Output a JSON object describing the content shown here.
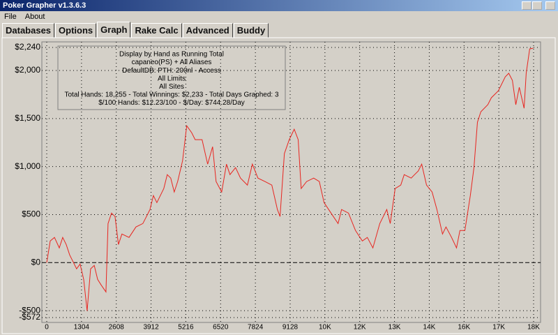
{
  "window": {
    "title": "Poker Grapher v1.3.6.3"
  },
  "menu": [
    "File",
    "About"
  ],
  "tabs": [
    "Databases",
    "Options",
    "Graph",
    "Rake Calc",
    "Advanced",
    "Buddy"
  ],
  "chart_data": {
    "type": "line",
    "annotations": [
      "Display by Hand as Running Total",
      "capaneo(PS) + All Aliases",
      "DefaultDB: PTH: 200nl  - Access",
      "All Limits",
      "All Sites",
      "Total Hands: 18,255 - Total Winnings: $2,233 - Total Days Graphed: 3",
      "$/100 Hands: $12.23/100 - $/Day: $744.28/Day"
    ],
    "x": [
      0,
      130,
      290,
      470,
      600,
      730,
      860,
      990,
      1120,
      1250,
      1385,
      1515,
      1645,
      1780,
      1910,
      2040,
      2220,
      2300,
      2430,
      2560,
      2690,
      2820,
      3085,
      3345,
      3605,
      3740,
      3870,
      4000,
      4130,
      4390,
      4520,
      4650,
      4780,
      4910,
      5095,
      5250,
      5435,
      5565,
      5825,
      6035,
      6220,
      6350,
      6560,
      6740,
      6870,
      7080,
      7265,
      7525,
      7710,
      7920,
      8180,
      8440,
      8650,
      8750,
      8910,
      9095,
      9280,
      9430,
      9540,
      9745,
      10010,
      10220,
      10400,
      10660,
      10925,
      11055,
      11315,
      11575,
      11835,
      12020,
      12230,
      12490,
      12750,
      12880,
      13065,
      13275,
      13405,
      13665,
      13795,
      13930,
      14060,
      14240,
      14450,
      14630,
      14840,
      14970,
      15180,
      15365,
      15495,
      15680,
      15885,
      16020,
      16150,
      16280,
      16540,
      16670,
      16935,
      17195,
      17325,
      17460,
      17590,
      17720,
      17900,
      17980,
      18110,
      18240
    ],
    "series": [
      {
        "color": "#e8241f",
        "values": [
          0,
          225,
          262,
          153,
          262,
          189,
          80,
          7,
          -65,
          -15,
          -175,
          -502,
          -65,
          -29,
          -175,
          -233,
          -305,
          407,
          516,
          480,
          189,
          298,
          262,
          371,
          407,
          480,
          553,
          698,
          625,
          771,
          916,
          880,
          735,
          844,
          1062,
          1425,
          1353,
          1280,
          1280,
          1025,
          1207,
          844,
          735,
          1025,
          916,
          989,
          880,
          807,
          1025,
          880,
          844,
          807,
          553,
          480,
          1135,
          1280,
          1389,
          1280,
          771,
          844,
          880,
          844,
          625,
          516,
          407,
          553,
          516,
          335,
          225,
          262,
          153,
          407,
          553,
          407,
          771,
          807,
          916,
          880,
          916,
          953,
          1025,
          807,
          735,
          553,
          298,
          371,
          262,
          153,
          335,
          335,
          698,
          989,
          1462,
          1571,
          1644,
          1716,
          1789,
          1935,
          1971,
          1898,
          1644,
          1825,
          1607,
          1971,
          2225,
          2233
        ]
      }
    ],
    "xlim": [
      0,
      18256
    ],
    "ylim": [
      -572,
      2240
    ],
    "xticks": [
      0,
      1304,
      2608,
      3912,
      5216,
      6520,
      7824,
      9128,
      {
        "value": 10432,
        "label": "10K"
      },
      {
        "value": 11736,
        "label": "12K"
      },
      {
        "value": 13040,
        "label": "13K"
      },
      {
        "value": 14344,
        "label": "14K"
      },
      {
        "value": 15648,
        "label": "16K"
      },
      {
        "value": 16952,
        "label": "17K"
      },
      {
        "value": 18256,
        "label": "18K"
      }
    ],
    "yticks": [
      {
        "value": 2240,
        "label": "$2,240"
      },
      {
        "value": 2000,
        "label": "$2,000"
      },
      {
        "value": 1500,
        "label": "$1,500"
      },
      {
        "value": 1000,
        "label": "$1,000"
      },
      {
        "value": 500,
        "label": "$500"
      },
      {
        "value": 0,
        "label": "$0"
      },
      {
        "value": -500,
        "label": "-$500"
      },
      {
        "value": -572,
        "label": "-$572"
      }
    ],
    "grid": true
  }
}
